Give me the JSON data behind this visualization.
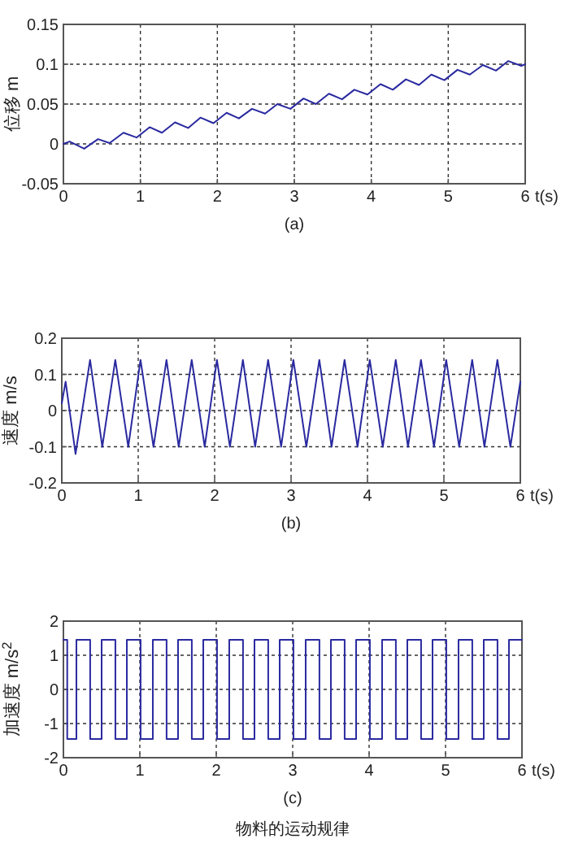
{
  "chart_data": [
    {
      "type": "line",
      "ylabel": "位移 m",
      "xlabel": "t(s)",
      "annotations": [
        "(a)"
      ],
      "color": "#2a2aa0",
      "grid": true,
      "line_style": "solid",
      "xlim": [
        0,
        6
      ],
      "ylim": [
        -0.05,
        0.15
      ],
      "xticks": [
        0,
        1,
        2,
        3,
        4,
        5,
        6
      ],
      "yticks": [
        -0.05,
        0,
        0.05,
        0.1,
        0.15
      ],
      "x": [
        0,
        0.08,
        0.27,
        0.45,
        0.6,
        0.78,
        0.95,
        1.12,
        1.28,
        1.45,
        1.62,
        1.78,
        1.95,
        2.12,
        2.28,
        2.45,
        2.62,
        2.78,
        2.95,
        3.12,
        3.28,
        3.45,
        3.62,
        3.78,
        3.95,
        4.12,
        4.28,
        4.45,
        4.62,
        4.78,
        4.95,
        5.12,
        5.28,
        5.45,
        5.62,
        5.78,
        5.95,
        6
      ],
      "values": [
        0,
        0.003,
        -0.006,
        0.006,
        0.001,
        0.014,
        0.008,
        0.021,
        0.014,
        0.027,
        0.02,
        0.033,
        0.026,
        0.039,
        0.032,
        0.044,
        0.038,
        0.05,
        0.044,
        0.057,
        0.05,
        0.063,
        0.056,
        0.068,
        0.062,
        0.075,
        0.068,
        0.081,
        0.074,
        0.087,
        0.08,
        0.093,
        0.087,
        0.099,
        0.092,
        0.104,
        0.098,
        0.1
      ]
    },
    {
      "type": "line",
      "ylabel": "速度 m/s",
      "xlabel": "t(s)",
      "annotations": [
        "(b)"
      ],
      "color": "#2a2aa0",
      "grid": true,
      "line_style": "solid",
      "xlim": [
        0,
        6
      ],
      "ylim": [
        -0.2,
        0.2
      ],
      "xticks": [
        0,
        1,
        2,
        3,
        4,
        5,
        6
      ],
      "yticks": [
        -0.2,
        -0.1,
        0,
        0.1,
        0.2
      ],
      "x": [
        0,
        0.05,
        0.18,
        0.37,
        0.53,
        0.7,
        0.87,
        1.03,
        1.2,
        1.37,
        1.53,
        1.7,
        1.87,
        2.03,
        2.2,
        2.37,
        2.53,
        2.7,
        2.87,
        3.03,
        3.2,
        3.37,
        3.53,
        3.7,
        3.87,
        4.03,
        4.2,
        4.37,
        4.53,
        4.7,
        4.87,
        5.03,
        5.2,
        5.37,
        5.53,
        5.7,
        5.87,
        6
      ],
      "values": [
        0.02,
        0.08,
        -0.12,
        0.14,
        -0.1,
        0.14,
        -0.1,
        0.14,
        -0.1,
        0.14,
        -0.1,
        0.14,
        -0.1,
        0.14,
        -0.1,
        0.14,
        -0.1,
        0.14,
        -0.1,
        0.14,
        -0.1,
        0.14,
        -0.1,
        0.14,
        -0.1,
        0.14,
        -0.1,
        0.14,
        -0.1,
        0.14,
        -0.1,
        0.14,
        -0.1,
        0.14,
        -0.1,
        0.14,
        -0.1,
        0.08
      ]
    },
    {
      "type": "step",
      "ylabel": "加速度 m/s$^{2}$",
      "xlabel": "t(s)",
      "annotations": [
        "(c)",
        "物料的运动规律"
      ],
      "color": "#2a2aa0",
      "grid": true,
      "line_style": "solid",
      "xlim": [
        0,
        6
      ],
      "ylim": [
        -2,
        2
      ],
      "xticks": [
        0,
        1,
        2,
        3,
        4,
        5,
        6
      ],
      "yticks": [
        -2,
        -1,
        0,
        1,
        2
      ],
      "x": [
        0,
        0.05,
        0.17,
        0.35,
        0.5,
        0.68,
        0.83,
        1.01,
        1.17,
        1.35,
        1.5,
        1.68,
        1.83,
        2.01,
        2.17,
        2.35,
        2.5,
        2.68,
        2.83,
        3.01,
        3.17,
        3.35,
        3.5,
        3.68,
        3.83,
        4.01,
        4.17,
        4.35,
        4.5,
        4.68,
        4.83,
        5.01,
        5.17,
        5.35,
        5.5,
        5.68,
        5.83,
        6
      ],
      "values": [
        1.45,
        -1.45,
        1.45,
        -1.45,
        1.45,
        -1.45,
        1.45,
        -1.45,
        1.45,
        -1.45,
        1.45,
        -1.45,
        1.45,
        -1.45,
        1.45,
        -1.45,
        1.45,
        -1.45,
        1.45,
        -1.45,
        1.45,
        -1.45,
        1.45,
        -1.45,
        1.45,
        -1.45,
        1.45,
        -1.45,
        1.45,
        -1.45,
        1.45,
        -1.45,
        1.45,
        -1.45,
        1.45,
        -1.45,
        1.45,
        1.45
      ]
    }
  ]
}
